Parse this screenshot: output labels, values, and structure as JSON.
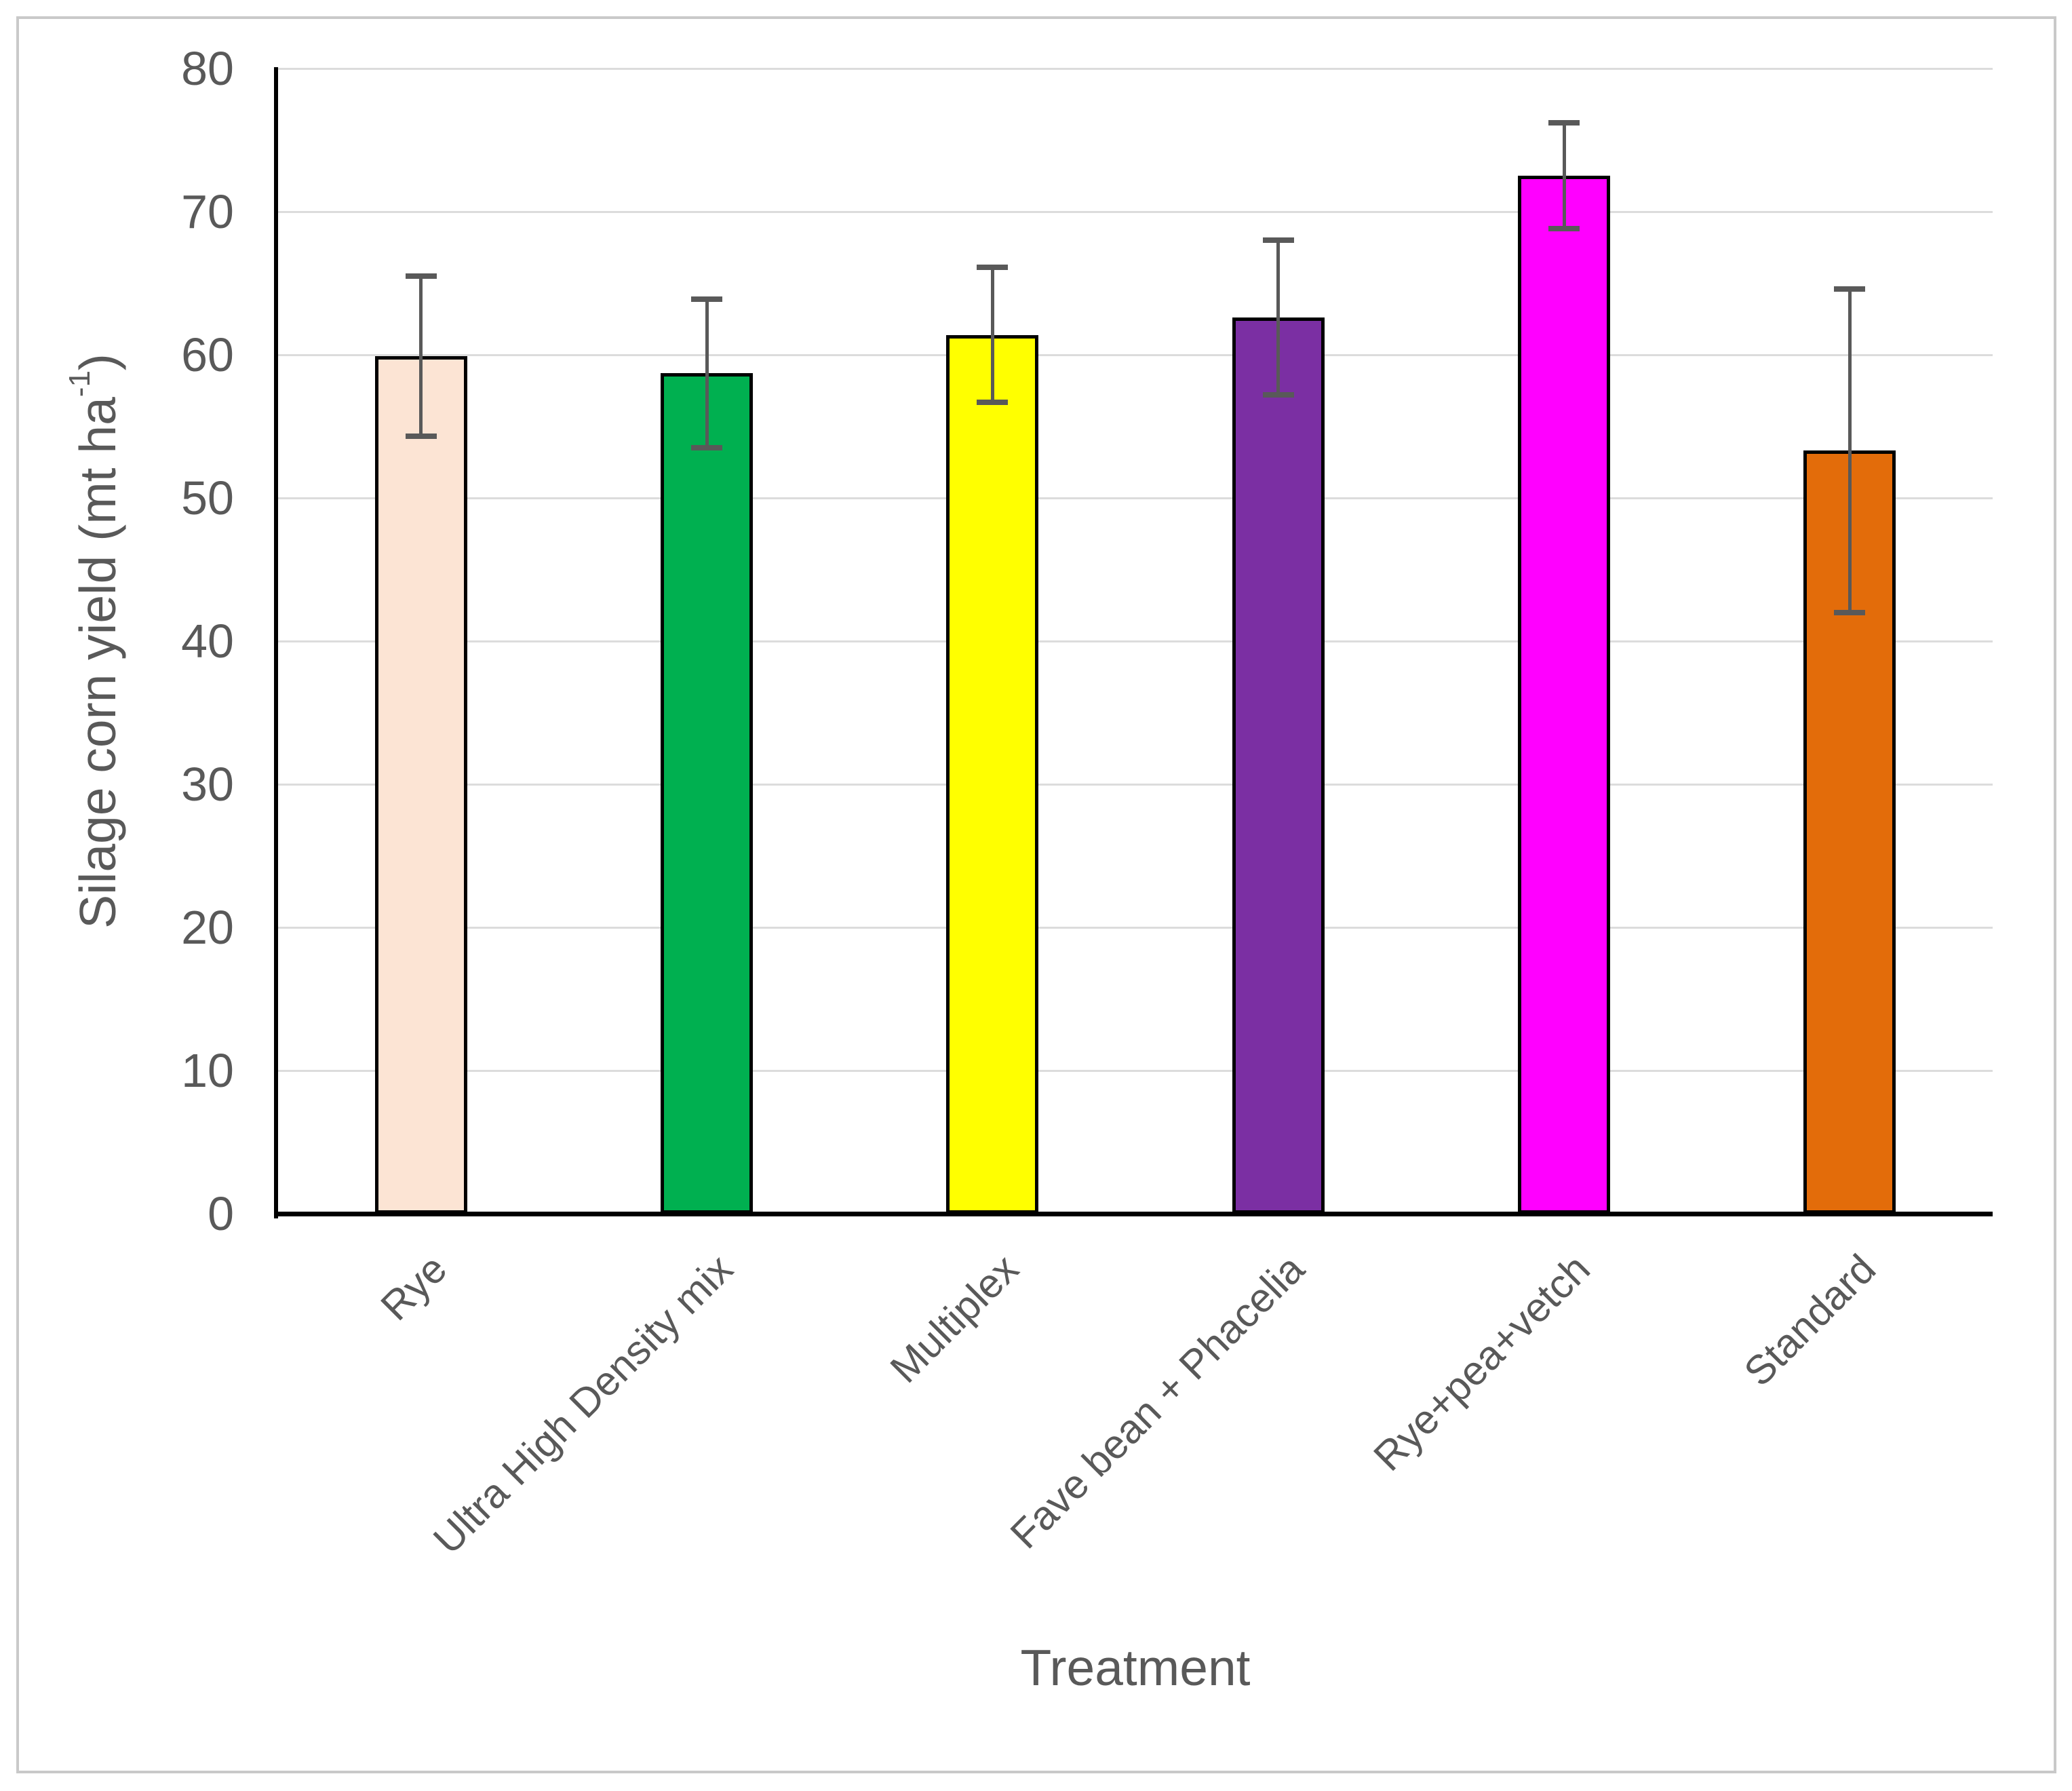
{
  "chart_data": {
    "type": "bar",
    "title": "",
    "categories": [
      "Rye",
      "Ultra High Density mix",
      "Multiplex",
      "Fave bean + Phacelia",
      "Rye+pea+vetch",
      "Standard"
    ],
    "values": [
      59.9,
      58.7,
      61.4,
      62.6,
      72.5,
      53.3
    ],
    "error_bars": [
      5.6,
      5.2,
      4.7,
      5.4,
      3.7,
      11.3
    ],
    "bar_colors": [
      "#FCE4D4",
      "#00B050",
      "#FFFF00",
      "#7B2FA3",
      "#FF00FF",
      "#E36C0A"
    ],
    "bar_border_color": "#000000",
    "error_bar_color": "#595959",
    "gridline_color": "#DCDCDC",
    "axis_line_color": "#000000",
    "text_color": "#595959",
    "frame_color": "#C9C9C9",
    "xlabel": "Treatment",
    "ylabel": "Silage corn yield (mt ha⁻¹)",
    "ylabel_parts": {
      "main": "Silage corn yield (mt ha",
      "sup": "-1",
      "close": ")"
    },
    "ylim": [
      0,
      80
    ],
    "yticks": [
      0,
      10,
      20,
      30,
      40,
      50,
      60,
      70,
      80
    ],
    "grid": "horizontal",
    "legend": "none"
  }
}
